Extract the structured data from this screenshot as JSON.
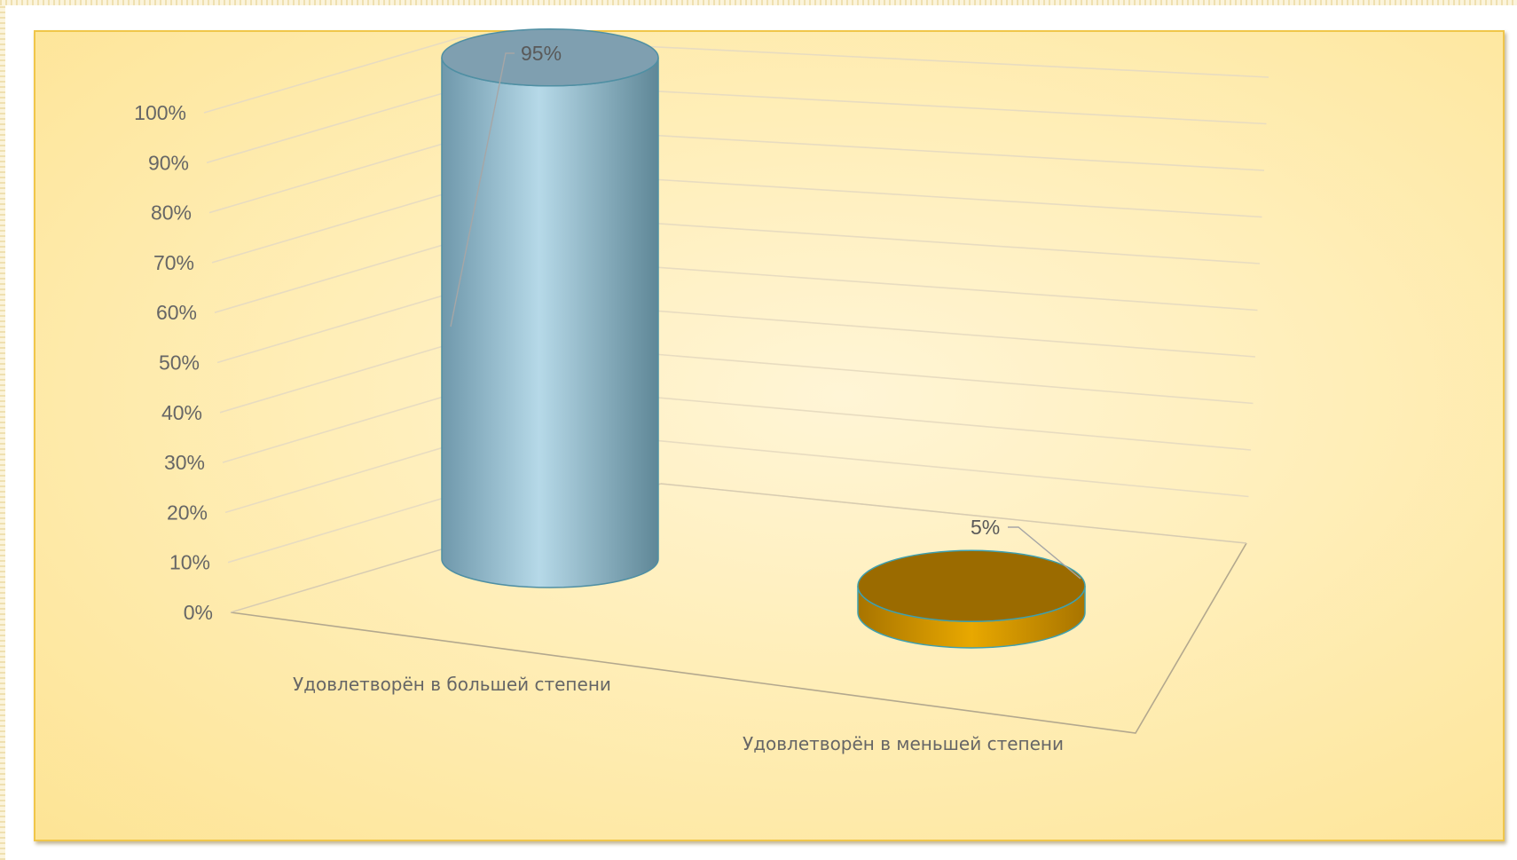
{
  "chart_data": {
    "type": "bar",
    "style": "3d-cylinder",
    "categories": [
      "Удовлетворён в большей степени",
      "Удовлетворён в меньшей степени"
    ],
    "values": [
      95,
      5
    ],
    "data_labels": [
      "95%",
      "5%"
    ],
    "colors": [
      "#8fbfd4",
      "#c98f00"
    ],
    "y_ticks": [
      "0%",
      "10%",
      "20%",
      "30%",
      "40%",
      "50%",
      "60%",
      "70%",
      "80%",
      "90%",
      "100%"
    ],
    "ylim": [
      0,
      100
    ],
    "grid": true,
    "legend": "none",
    "title": ""
  }
}
